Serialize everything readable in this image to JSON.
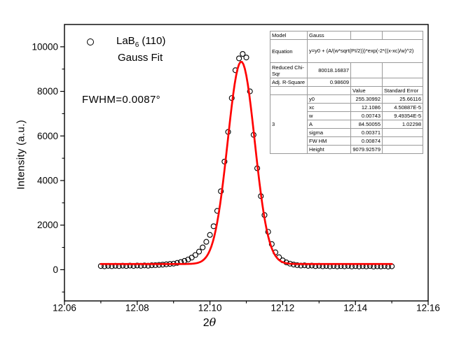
{
  "accent_colors": {
    "fit_line": "#FF0000",
    "marker_stroke": "#000000",
    "frame": "#000000"
  },
  "chart_data": {
    "type": "scatter",
    "title": "",
    "xlabel": "2θ",
    "xlabel_parts": {
      "num": "2",
      "sym": "θ"
    },
    "ylabel": "Intensity (a.u.)",
    "xlim": [
      12.06,
      12.16
    ],
    "ylim": [
      -1400,
      11000
    ],
    "x_tick_values": [
      12.06,
      12.08,
      12.1,
      12.12,
      12.14,
      12.16
    ],
    "x_tick_labels": [
      "12.06",
      "12.08",
      "12.10",
      "12.12",
      "12.14",
      "12.16"
    ],
    "x_minor_ticks": [
      12.07,
      12.09,
      12.11,
      12.13,
      12.15
    ],
    "y_tick_values": [
      0,
      2000,
      4000,
      6000,
      8000,
      10000
    ],
    "y_tick_labels": [
      "0",
      "2000",
      "4000",
      "6000",
      "8000",
      "10000"
    ],
    "y_minor_ticks": [
      -1000,
      1000,
      3000,
      5000,
      7000,
      9000
    ],
    "grid": false,
    "legend_position": "top-left-inside",
    "series": [
      {
        "name": "LaB6 (110)",
        "type": "scatter",
        "marker": "open-circle",
        "color": "#000000",
        "x_start": 12.07,
        "x_step": 0.001,
        "y": [
          165,
          152,
          172,
          158,
          175,
          162,
          180,
          166,
          184,
          170,
          188,
          174,
          192,
          178,
          198,
          205,
          215,
          228,
          242,
          258,
          272,
          305,
          345,
          395,
          460,
          545,
          660,
          810,
          1000,
          1250,
          1560,
          1950,
          2640,
          3520,
          4850,
          6180,
          7700,
          8950,
          9480,
          9680,
          9520,
          8000,
          6050,
          4550,
          3300,
          2450,
          1700,
          1150,
          780,
          560,
          420,
          330,
          272,
          232,
          205,
          185,
          196,
          172,
          184,
          160,
          176,
          154,
          168,
          150,
          165,
          148,
          162,
          152,
          170,
          146,
          160,
          144,
          158,
          150,
          166,
          142,
          154,
          147,
          160,
          140,
          152
        ]
      },
      {
        "name": "Gauss Fit",
        "type": "line",
        "color": "#FF0000",
        "fit": {
          "y0": 255.30992,
          "xc": 12.1086,
          "w": 0.00743,
          "A": 84.50055,
          "height": 9079.92579
        },
        "x_range": [
          12.07,
          12.15
        ]
      }
    ]
  },
  "legend": {
    "items": [
      {
        "label": "LaB6 (110)",
        "parts": {
          "pre": "LaB",
          "sub": "6",
          "post": " (110)"
        },
        "marker": "open-circle"
      },
      {
        "label": "Gauss Fit",
        "marker": "red-line"
      }
    ]
  },
  "annotation": {
    "fwhm_label": "FWHM=0.0087°"
  },
  "fit_table": {
    "model_label": "Model",
    "model_value": "Gauss",
    "equation_label": "Equation",
    "equation_value": "y=y0 + (A/(w*sqrt(PI/2)))*exp(-2*((x-xc)/w)^2)",
    "reduced_label": "Reduced Chi-Sqr",
    "reduced_value": "80018.16837",
    "adj_label": "Adj. R-Square",
    "adj_value": "0.98609",
    "col_value": "Value",
    "col_stderr": "Standard Error",
    "dataset_label": "3",
    "params": [
      {
        "name": "y0",
        "value": "255.30992",
        "stderr": "25.66116"
      },
      {
        "name": "xc",
        "value": "12.1086",
        "stderr": "4.50887E-5"
      },
      {
        "name": "w",
        "value": "0.00743",
        "stderr": "9.49354E-5"
      },
      {
        "name": "A",
        "value": "84.50055",
        "stderr": "1.02298"
      },
      {
        "name": "sigma",
        "value": "0.00371",
        "stderr": ""
      },
      {
        "name": "FW HM",
        "value": "0.00874",
        "stderr": ""
      },
      {
        "name": "Height",
        "value": "9079.92579",
        "stderr": ""
      }
    ]
  }
}
